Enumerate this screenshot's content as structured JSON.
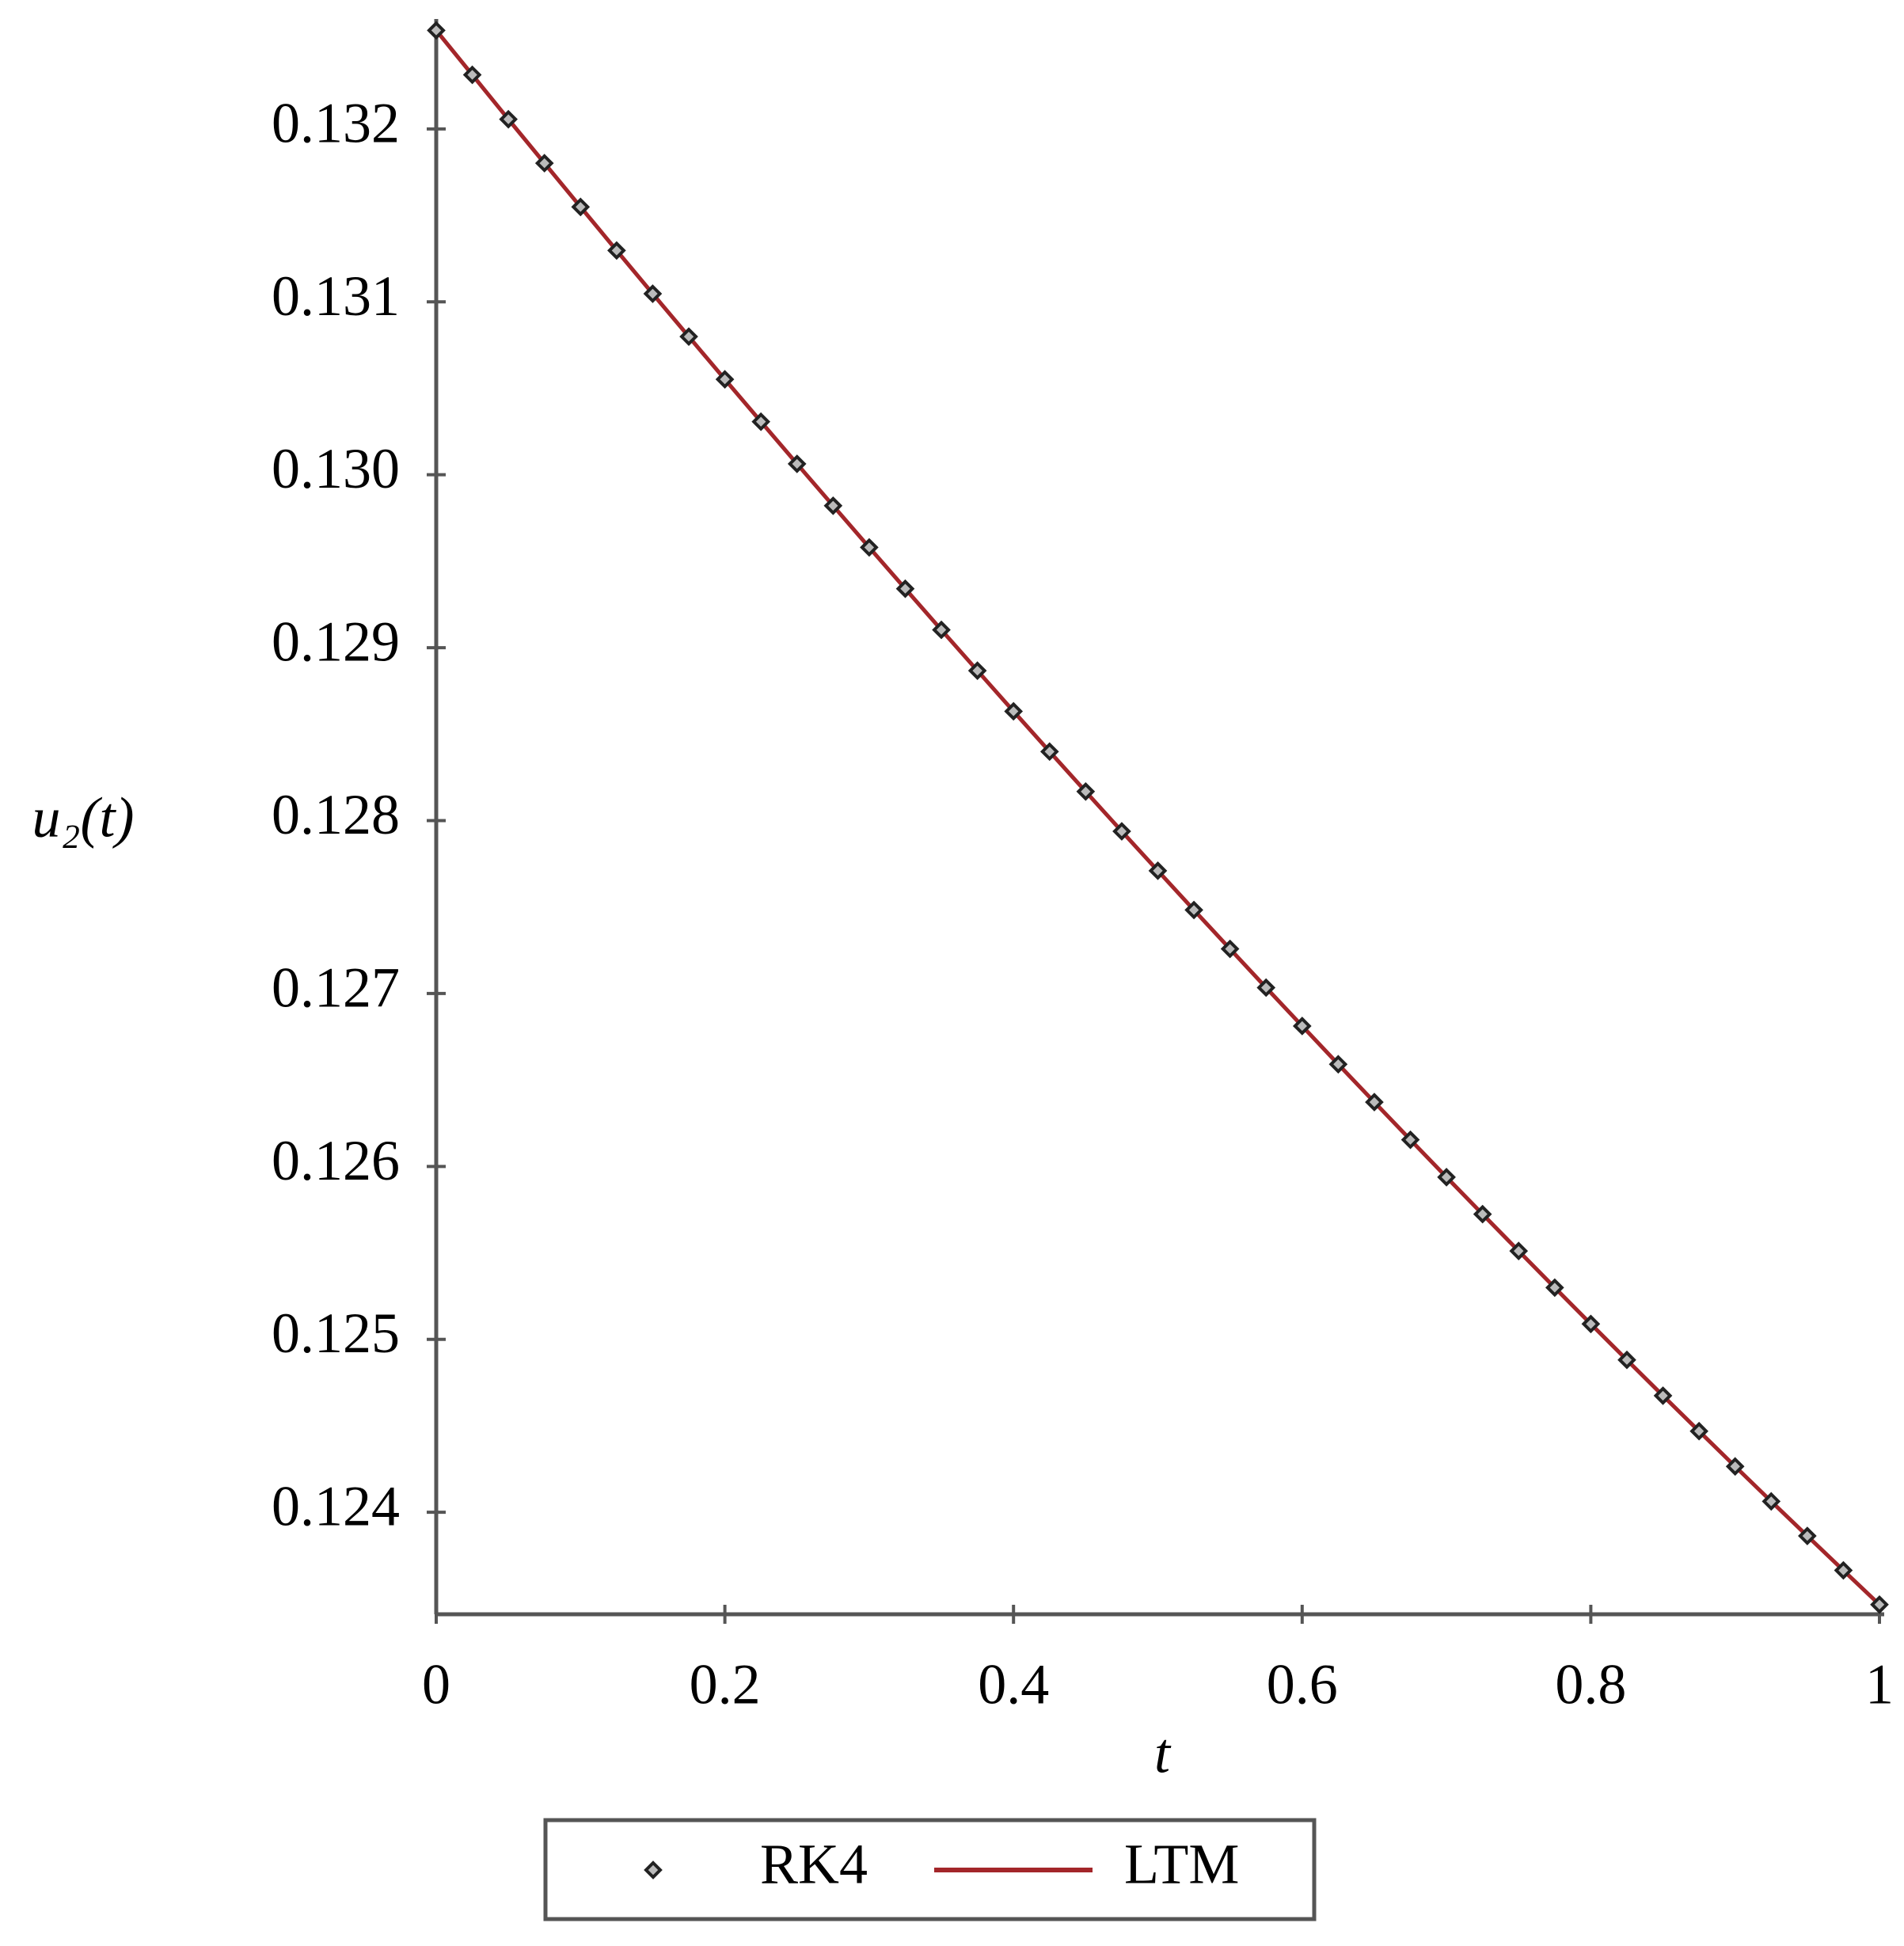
{
  "chart_data": {
    "type": "line",
    "x_label": "t",
    "y_label": "u₂(t)",
    "x": [
      0,
      0.025,
      0.05,
      0.075,
      0.1,
      0.125,
      0.15,
      0.175,
      0.2,
      0.225,
      0.25,
      0.275,
      0.3,
      0.325,
      0.35,
      0.375,
      0.4,
      0.425,
      0.45,
      0.475,
      0.5,
      0.525,
      0.55,
      0.575,
      0.6,
      0.625,
      0.65,
      0.675,
      0.7,
      0.725,
      0.75,
      0.775,
      0.8,
      0.825,
      0.85,
      0.875,
      0.9,
      0.925,
      0.95,
      0.975,
      1
    ],
    "series": [
      {
        "name": "RK4",
        "marker": "diamond",
        "color": "#222222",
        "values": [
          0.13257,
          0.132313,
          0.132056,
          0.131802,
          0.131549,
          0.131297,
          0.131047,
          0.130799,
          0.130552,
          0.130307,
          0.130063,
          0.129821,
          0.12958,
          0.129341,
          0.129103,
          0.128867,
          0.128632,
          0.128399,
          0.128168,
          0.127938,
          0.12771,
          0.127483,
          0.127258,
          0.127034,
          0.126812,
          0.126591,
          0.126372,
          0.126154,
          0.125938,
          0.125724,
          0.125511,
          0.125299,
          0.125089,
          0.124881,
          0.124674,
          0.124469,
          0.124265,
          0.124063,
          0.123863,
          0.123664,
          0.123466
        ]
      },
      {
        "name": "LTM",
        "marker": "line",
        "color": "#a3262a",
        "values": [
          0.13257,
          0.132313,
          0.132056,
          0.131802,
          0.131549,
          0.131297,
          0.131047,
          0.130799,
          0.130552,
          0.130307,
          0.130063,
          0.129821,
          0.12958,
          0.129341,
          0.129103,
          0.128867,
          0.128632,
          0.128399,
          0.128168,
          0.127938,
          0.12771,
          0.127483,
          0.127258,
          0.127034,
          0.126812,
          0.126591,
          0.126372,
          0.126154,
          0.125938,
          0.125724,
          0.125511,
          0.125299,
          0.125089,
          0.124881,
          0.124674,
          0.124469,
          0.124265,
          0.124063,
          0.123863,
          0.123664,
          0.123466
        ]
      }
    ],
    "xlim": [
      0,
      1
    ],
    "ylim": [
      0.12341,
      0.13259
    ],
    "xticks": [
      0,
      0.2,
      0.4,
      0.6,
      0.8,
      1
    ],
    "yticks": [
      0.124,
      0.125,
      0.126,
      0.127,
      0.128,
      0.129,
      {
        "value": 0.13,
        "label": "0.130"
      },
      0.131,
      0.132
    ],
    "grid": false,
    "legend": "bottom"
  }
}
